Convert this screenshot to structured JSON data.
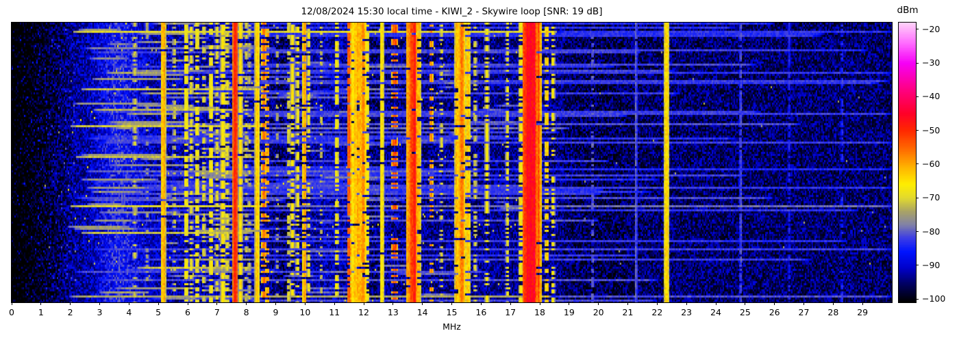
{
  "chart_data": {
    "type": "heatmap",
    "subtype": "rf-waterfall-spectrogram",
    "title": "12/08/2024 15:30 local time - KIWI_2 - Skywire loop [SNR: 19 dB]",
    "snr_db": 19,
    "xlabel": "MHz",
    "x_range_mhz": [
      0,
      30
    ],
    "x_tick_labels": [
      "0",
      "1",
      "2",
      "3",
      "4",
      "5",
      "6",
      "7",
      "8",
      "9",
      "10",
      "11",
      "12",
      "13",
      "14",
      "15",
      "16",
      "17",
      "18",
      "19",
      "20",
      "21",
      "22",
      "23",
      "24",
      "25",
      "26",
      "27",
      "28",
      "29"
    ],
    "grid": false,
    "colorbar": {
      "label": "dBm",
      "tick_labels": [
        "−20",
        "−30",
        "−40",
        "−50",
        "−60",
        "−70",
        "−80",
        "−90",
        "−100"
      ],
      "tick_values": [
        -20,
        -30,
        -40,
        -50,
        -60,
        -70,
        -80,
        -90,
        -100
      ],
      "value_range": [
        -101,
        -18
      ],
      "position": "right"
    },
    "colormap_stops": [
      {
        "v": -101,
        "c": "#000000"
      },
      {
        "v": -96,
        "c": "#00005a"
      },
      {
        "v": -91,
        "c": "#0000c8"
      },
      {
        "v": -86,
        "c": "#0014ff"
      },
      {
        "v": -82,
        "c": "#3c3ce6"
      },
      {
        "v": -78,
        "c": "#8282a6"
      },
      {
        "v": -74,
        "c": "#aaa464"
      },
      {
        "v": -70,
        "c": "#e2da2e"
      },
      {
        "v": -66,
        "c": "#ffee00"
      },
      {
        "v": -61,
        "c": "#ffb400"
      },
      {
        "v": -56,
        "c": "#ff7000"
      },
      {
        "v": -50,
        "c": "#ff2800"
      },
      {
        "v": -45,
        "c": "#ff0028"
      },
      {
        "v": -38,
        "c": "#ff0080"
      },
      {
        "v": -30,
        "c": "#f600f6"
      },
      {
        "v": -24,
        "c": "#ff6cff"
      },
      {
        "v": -18,
        "c": "#ffd2f8"
      }
    ],
    "noise": {
      "floor_dbm": -99,
      "spread_db": 12,
      "left_fade_below_mhz": 2.2,
      "right_dim_above_mhz": 18.8,
      "haze_bands": [
        {
          "center_mhz": 3.65,
          "sigma_mhz": 0.55,
          "boost_db": 8
        },
        {
          "center_mhz": 5.4,
          "sigma_mhz": 2.2,
          "boost_db": 2.2
        },
        {
          "center_mhz": 10.9,
          "sigma_mhz": 0.5,
          "boost_db": 2.5
        }
      ],
      "dark_pockets": [
        {
          "center_mhz": 9.25,
          "sigma_mhz": 0.35,
          "dip_db": 2.5
        },
        {
          "center_mhz": 12.38,
          "sigma_mhz": 0.18,
          "dip_db": 2.0
        },
        {
          "center_mhz": 20.2,
          "sigma_mhz": 0.8,
          "dip_db": 1.5
        }
      ]
    },
    "signals": [
      {
        "f": 4.2,
        "w": 0.05,
        "lvl": -72,
        "duty": 0.4
      },
      {
        "f": 4.62,
        "w": 0.04,
        "lvl": -75,
        "duty": 0.3
      },
      {
        "f": 5.17,
        "w": 0.06,
        "lvl": -63,
        "duty": 0.97
      },
      {
        "f": 5.55,
        "w": 0.04,
        "lvl": -72,
        "duty": 0.35
      },
      {
        "f": 5.95,
        "w": 0.05,
        "lvl": -67,
        "duty": 0.7
      },
      {
        "f": 6.12,
        "w": 0.04,
        "lvl": -70,
        "duty": 0.5
      },
      {
        "f": 6.32,
        "w": 0.05,
        "lvl": -68,
        "duty": 0.6
      },
      {
        "f": 6.55,
        "w": 0.04,
        "lvl": -70,
        "duty": 0.45
      },
      {
        "f": 6.8,
        "w": 0.05,
        "lvl": -67,
        "duty": 0.6
      },
      {
        "f": 7.0,
        "w": 0.04,
        "lvl": -70,
        "duty": 0.5
      },
      {
        "f": 7.2,
        "w": 0.05,
        "lvl": -66,
        "duty": 0.65
      },
      {
        "f": 7.35,
        "w": 0.04,
        "lvl": -69,
        "duty": 0.5
      },
      {
        "f": 7.62,
        "w": 0.06,
        "lvl": -50,
        "duty": 1.0
      },
      {
        "f": 7.8,
        "w": 0.04,
        "lvl": -65,
        "duty": 0.8
      },
      {
        "f": 8.0,
        "w": 0.035,
        "lvl": -71,
        "duty": 0.4
      },
      {
        "f": 8.1,
        "w": 0.03,
        "lvl": -72,
        "duty": 0.35
      },
      {
        "f": 8.37,
        "w": 0.05,
        "lvl": -63,
        "duty": 0.95
      },
      {
        "f": 8.6,
        "w": 0.05,
        "lvl": -56,
        "duty": 0.5
      },
      {
        "f": 8.72,
        "w": 0.04,
        "lvl": -60,
        "duty": 0.4
      },
      {
        "f": 9.05,
        "w": 0.03,
        "lvl": -74,
        "duty": 0.3
      },
      {
        "f": 9.45,
        "w": 0.04,
        "lvl": -70,
        "duty": 0.45
      },
      {
        "f": 9.57,
        "w": 0.04,
        "lvl": -66,
        "duty": 0.6
      },
      {
        "f": 9.75,
        "w": 0.04,
        "lvl": -68,
        "duty": 0.5
      },
      {
        "f": 9.98,
        "w": 0.04,
        "lvl": -60,
        "duty": 0.75
      },
      {
        "f": 10.12,
        "w": 0.03,
        "lvl": -68,
        "duty": 0.5
      },
      {
        "f": 10.55,
        "w": 0.03,
        "lvl": -72,
        "duty": 0.35
      },
      {
        "f": 11.08,
        "w": 0.04,
        "lvl": -67,
        "duty": 0.55
      },
      {
        "f": 11.5,
        "w": 0.04,
        "lvl": -54,
        "duty": 0.8
      },
      {
        "f": 11.65,
        "w": 0.07,
        "lvl": -63,
        "duty": 0.9
      },
      {
        "f": 11.82,
        "w": 0.09,
        "lvl": -61,
        "duty": 0.9
      },
      {
        "f": 11.98,
        "w": 0.07,
        "lvl": -59,
        "duty": 0.85
      },
      {
        "f": 12.12,
        "w": 0.04,
        "lvl": -67,
        "duty": 0.6
      },
      {
        "f": 12.62,
        "w": 0.04,
        "lvl": -65,
        "duty": 0.92
      },
      {
        "f": 13.05,
        "w": 0.06,
        "lvl": -52,
        "duty": 0.3
      },
      {
        "f": 13.55,
        "w": 0.07,
        "lvl": -57,
        "duty": 0.95
      },
      {
        "f": 13.7,
        "w": 0.09,
        "lvl": -50,
        "duty": 0.97
      },
      {
        "f": 13.86,
        "w": 0.05,
        "lvl": -61,
        "duty": 0.8
      },
      {
        "f": 14.3,
        "w": 0.04,
        "lvl": -58,
        "duty": 0.35
      },
      {
        "f": 14.65,
        "w": 0.03,
        "lvl": -70,
        "duty": 0.4
      },
      {
        "f": 15.2,
        "w": 0.06,
        "lvl": -62,
        "duty": 0.88
      },
      {
        "f": 15.35,
        "w": 0.08,
        "lvl": -57,
        "duty": 0.92
      },
      {
        "f": 15.55,
        "w": 0.05,
        "lvl": -63,
        "duty": 0.8
      },
      {
        "f": 15.8,
        "w": 0.03,
        "lvl": -70,
        "duty": 0.4
      },
      {
        "f": 16.2,
        "w": 0.04,
        "lvl": -67,
        "duty": 0.55
      },
      {
        "f": 16.9,
        "w": 0.035,
        "lvl": -69,
        "duty": 0.5
      },
      {
        "f": 17.35,
        "w": 0.035,
        "lvl": -66,
        "duty": 0.7
      },
      {
        "f": 17.55,
        "w": 0.1,
        "lvl": -48,
        "duty": 1.0
      },
      {
        "f": 17.75,
        "w": 0.11,
        "lvl": -46,
        "duty": 1.0
      },
      {
        "f": 17.95,
        "w": 0.07,
        "lvl": -55,
        "duty": 0.95
      },
      {
        "f": 18.25,
        "w": 0.04,
        "lvl": -63,
        "duty": 0.6
      },
      {
        "f": 18.45,
        "w": 0.035,
        "lvl": -67,
        "duty": 0.45
      },
      {
        "f": 19.8,
        "w": 0.025,
        "lvl": -80,
        "duty": 0.5
      },
      {
        "f": 21.28,
        "w": 0.02,
        "lvl": -80,
        "duty": 0.95
      },
      {
        "f": 22.32,
        "w": 0.05,
        "lvl": -64,
        "duty": 1.0
      },
      {
        "f": 24.85,
        "w": 0.02,
        "lvl": -81,
        "duty": 0.9
      },
      {
        "f": 26.5,
        "w": 0.02,
        "lvl": -84,
        "duty": 0.6
      },
      {
        "f": 28.3,
        "w": 0.02,
        "lvl": -84,
        "duty": 0.4
      }
    ],
    "featured_streaks": [
      {
        "row": 4,
        "f0": 2.1,
        "f1": 18.6,
        "lvl": -70
      },
      {
        "row": 4,
        "f0": 18.6,
        "f1": 30,
        "lvl": -83
      },
      {
        "row": 12,
        "f0": 2.5,
        "f1": 9.0,
        "lvl": -78
      },
      {
        "row": 24,
        "f0": 3.0,
        "f1": 30,
        "lvl": -83
      },
      {
        "row": 32,
        "f0": 2.4,
        "f1": 8.6,
        "lvl": -72
      },
      {
        "row": 36,
        "f0": 5.0,
        "f1": 12.0,
        "lvl": -80
      },
      {
        "row": 42,
        "f0": 2.8,
        "f1": 8.2,
        "lvl": -73
      },
      {
        "row": 50,
        "f0": 2.0,
        "f1": 8.6,
        "lvl": -71
      },
      {
        "row": 51,
        "f0": 8.6,
        "f1": 19.0,
        "lvl": -79
      },
      {
        "row": 58,
        "f0": 3.0,
        "f1": 30,
        "lvl": -82
      },
      {
        "row": 65,
        "f0": 2.2,
        "f1": 8.4,
        "lvl": -72
      },
      {
        "row": 72,
        "f0": 2.5,
        "f1": 16.0,
        "lvl": -80
      },
      {
        "row": 80,
        "f0": 4.0,
        "f1": 30,
        "lvl": -83
      },
      {
        "row": 89,
        "f0": 2.0,
        "f1": 8.7,
        "lvl": -70
      },
      {
        "row": 89,
        "f0": 8.7,
        "f1": 30,
        "lvl": -79
      },
      {
        "row": 96,
        "f0": 3.0,
        "f1": 20.0,
        "lvl": -81
      },
      {
        "row": 102,
        "f0": 2.4,
        "f1": 8.2,
        "lvl": -72
      },
      {
        "row": 110,
        "f0": 2.8,
        "f1": 30,
        "lvl": -82
      },
      {
        "row": 119,
        "f0": 4.3,
        "f1": 8.3,
        "lvl": -72
      },
      {
        "row": 125,
        "f0": 3.0,
        "f1": 22.0,
        "lvl": -81
      },
      {
        "row": 133,
        "f0": 2.0,
        "f1": 18.4,
        "lvl": -74
      },
      {
        "row": 133,
        "f0": 18.4,
        "f1": 30,
        "lvl": -81
      }
    ],
    "random_minor_streaks": {
      "count": 60,
      "lvl": -84
    },
    "left_dash_rows": {
      "probability": 0.45,
      "range_mhz": [
        1.9,
        8.6
      ],
      "lvl": -76
    },
    "mid_dash_rows": {
      "probability": 0.3,
      "range_mhz": [
        9.0,
        18.6
      ],
      "lvl": -80
    }
  }
}
